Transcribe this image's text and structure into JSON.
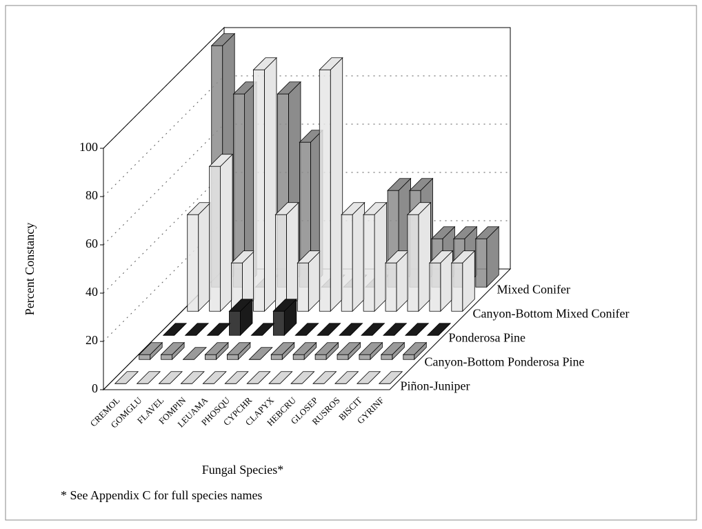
{
  "chart_data": {
    "type": "bar3d",
    "xlabel": "Fungal Species*",
    "ylabel": "Percent Constancy",
    "note": "* See Appendix C for full species names",
    "categories": [
      "CREMOL",
      "GOMGLU",
      "FLAVEL",
      "FOMPIN",
      "LEUAMA",
      "PHOSQU",
      "CYPCHR",
      "CLAPYX",
      "HEBCRU",
      "GLOSEP",
      "RUSROS",
      "BISCIT",
      "GYRINF"
    ],
    "series": [
      {
        "name": "Piñon-Juniper",
        "color": "#d8d8d8",
        "values": [
          0,
          0,
          0,
          0,
          0,
          0,
          0,
          0,
          0,
          0,
          0,
          0,
          0
        ]
      },
      {
        "name": "Canyon-Bottom Ponderosa Pine",
        "color": "#9a9a9a",
        "values": [
          2,
          2,
          0,
          2,
          2,
          0,
          2,
          2,
          2,
          2,
          2,
          2,
          2
        ]
      },
      {
        "name": "Ponderosa Pine",
        "color": "#1a1a1a",
        "values": [
          0,
          0,
          0,
          10,
          0,
          10,
          0,
          0,
          0,
          0,
          0,
          0,
          0
        ]
      },
      {
        "name": "Canyon-Bottom Mixed Conifer",
        "color": "#e6e6e6",
        "values": [
          40,
          60,
          20,
          100,
          40,
          20,
          100,
          40,
          40,
          20,
          40,
          20,
          20
        ]
      },
      {
        "name": "Mixed Conifer",
        "color": "#8c8c8c",
        "values": [
          100,
          80,
          0,
          80,
          60,
          0,
          0,
          0,
          40,
          40,
          20,
          20,
          20
        ]
      }
    ],
    "ylim": [
      0,
      100
    ],
    "yticks": [
      0,
      20,
      40,
      60,
      80,
      100
    ],
    "grid": true
  }
}
